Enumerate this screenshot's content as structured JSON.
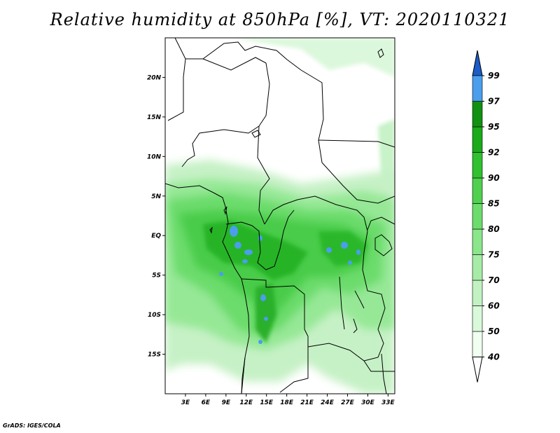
{
  "title": "Relative humidity at 850hPa [%], VT: 2020110321",
  "credit": "GrADS: IGES/COLA",
  "map": {
    "lon_range": [
      0,
      34
    ],
    "lat_range": [
      -20,
      25
    ],
    "lat_ticks": [
      {
        "lat": 20,
        "label": "20N"
      },
      {
        "lat": 15,
        "label": "15N"
      },
      {
        "lat": 10,
        "label": "10N"
      },
      {
        "lat": 5,
        "label": "5N"
      },
      {
        "lat": 0,
        "label": "EQ"
      },
      {
        "lat": -5,
        "label": "5S"
      },
      {
        "lat": -10,
        "label": "10S"
      },
      {
        "lat": -15,
        "label": "15S"
      }
    ],
    "lon_ticks": [
      {
        "lon": 3,
        "label": "3E"
      },
      {
        "lon": 6,
        "label": "6E"
      },
      {
        "lon": 9,
        "label": "9E"
      },
      {
        "lon": 12,
        "label": "12E"
      },
      {
        "lon": 15,
        "label": "15E"
      },
      {
        "lon": 18,
        "label": "18E"
      },
      {
        "lon": 21,
        "label": "21E"
      },
      {
        "lon": 24,
        "label": "24E"
      },
      {
        "lon": 27,
        "label": "27E"
      },
      {
        "lon": 30,
        "label": "30E"
      },
      {
        "lon": 33,
        "label": "33E"
      }
    ]
  },
  "colorbar": {
    "levels": [
      {
        "label": "40",
        "color": "#f0fff0"
      },
      {
        "label": "50",
        "color": "#daf8da"
      },
      {
        "label": "60",
        "color": "#c2f2c2"
      },
      {
        "label": "70",
        "color": "#a6eca6"
      },
      {
        "label": "75",
        "color": "#8be68b"
      },
      {
        "label": "80",
        "color": "#6cdc6c"
      },
      {
        "label": "85",
        "color": "#4fd04f"
      },
      {
        "label": "90",
        "color": "#30c030"
      },
      {
        "label": "92",
        "color": "#1aaa1a"
      },
      {
        "label": "95",
        "color": "#129012"
      },
      {
        "label": "97",
        "color": "#4a9eec"
      },
      {
        "label": "99",
        "color": "#2a78dc"
      }
    ],
    "below_color": "#ffffff",
    "above_color": "#1a5cc8"
  }
}
